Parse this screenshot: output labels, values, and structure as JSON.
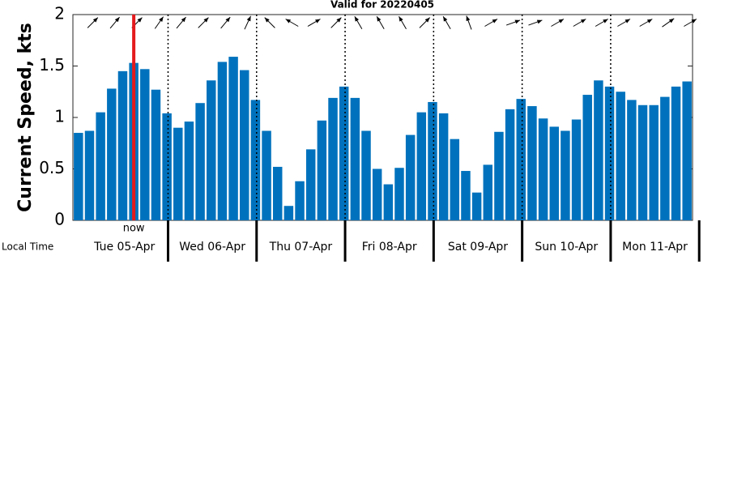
{
  "chart_data": {
    "type": "bar",
    "title": "Valid for 20220405",
    "y_label": "Current Speed, kts",
    "x_label": "Local Time",
    "color": "#0072bd",
    "ylim": [
      0,
      2
    ],
    "yticks": [
      0,
      0.5,
      1,
      1.5,
      2
    ],
    "days": [
      "Tue 05-Apr",
      "Wed 06-Apr",
      "Thu 07-Apr",
      "Fri 08-Apr",
      "Sat 09-Apr",
      "Sun 10-Apr",
      "Mon 11-Apr"
    ],
    "values": [
      0.85,
      0.87,
      1.05,
      1.28,
      1.45,
      1.53,
      1.47,
      1.27,
      1.04,
      0.9,
      0.96,
      1.14,
      1.36,
      1.54,
      1.59,
      1.46,
      1.17,
      0.87,
      0.52,
      0.14,
      0.38,
      0.69,
      0.97,
      1.19,
      1.3,
      1.19,
      0.87,
      0.5,
      0.35,
      0.51,
      0.83,
      1.05,
      1.15,
      1.04,
      0.79,
      0.48,
      0.27,
      0.54,
      0.86,
      1.08,
      1.18,
      1.11,
      0.99,
      0.91,
      0.87,
      0.98,
      1.22,
      1.36,
      1.3,
      1.25,
      1.17,
      1.12,
      1.12,
      1.2,
      1.3,
      1.35
    ],
    "directions": [
      45,
      40,
      45,
      35,
      40,
      45,
      40,
      25,
      315,
      300,
      60,
      45,
      330,
      330,
      330,
      45,
      330,
      340,
      60,
      70,
      70,
      60,
      60,
      60,
      60,
      60,
      55,
      60
    ],
    "now": {
      "label": "now",
      "index": 5,
      "color": "#e41a1c"
    }
  }
}
